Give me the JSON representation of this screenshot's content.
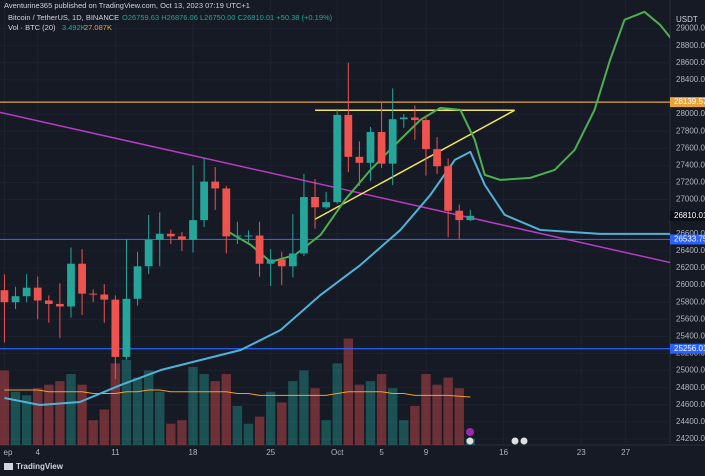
{
  "header": {
    "publisher": "Aventurine365 published on TradingView.com, Oct 13, 2023 07:19 UTC+1",
    "symbol": "Bitcoin / TetherUS, 1D, BINANCE",
    "ohlc": "O26759.63 H26876.06 L26750.00 C26810.01 +50.38 (+0.19%)",
    "volume": "Vol · BTC (20)",
    "vol_last": "3.492K",
    "vol_ma": "27.087K"
  },
  "chart_data": {
    "type": "candlestick",
    "currency": "USDT",
    "xlim": [
      -0.4,
      60
    ],
    "xticks": [
      {
        "value": 0,
        "label": "ep"
      },
      {
        "value": 3,
        "label": "4"
      },
      {
        "value": 10,
        "label": "11"
      },
      {
        "value": 17,
        "label": "18"
      },
      {
        "value": 24,
        "label": "25"
      },
      {
        "value": 30,
        "label": "Oct"
      },
      {
        "value": 34,
        "label": "5"
      },
      {
        "value": 38,
        "label": "9"
      },
      {
        "value": 45,
        "label": "16"
      },
      {
        "value": 52,
        "label": "23"
      },
      {
        "value": 56,
        "label": "27"
      }
    ],
    "ylim": [
      24130,
      29334
    ],
    "yticks": [
      {
        "value": 24200,
        "label": "24200.00"
      },
      {
        "value": 24400,
        "label": "24400.00"
      },
      {
        "value": 24600,
        "label": "24600.00"
      },
      {
        "value": 24800,
        "label": "24800.00"
      },
      {
        "value": 25000,
        "label": "25000.00"
      },
      {
        "value": 25200,
        "label": "25200.00"
      },
      {
        "value": 25400,
        "label": "25400.00"
      },
      {
        "value": 25600,
        "label": "25600.00"
      },
      {
        "value": 25800,
        "label": "25800.00"
      },
      {
        "value": 26000,
        "label": "26000.00"
      },
      {
        "value": 26200,
        "label": "26200.00"
      },
      {
        "value": 26400,
        "label": "26400.00"
      },
      {
        "value": 26600,
        "label": "26600.00"
      },
      {
        "value": 27000,
        "label": "27000.00"
      },
      {
        "value": 27200,
        "label": "27200.00"
      },
      {
        "value": 27400,
        "label": "27400.00"
      },
      {
        "value": 27600,
        "label": "27600.00"
      },
      {
        "value": 27800,
        "label": "27800.00"
      },
      {
        "value": 28000,
        "label": "28000.00"
      },
      {
        "value": 28400,
        "label": "28400.00"
      },
      {
        "value": 28600,
        "label": "28600.00"
      },
      {
        "value": 28800,
        "label": "28800.00"
      },
      {
        "value": 29000,
        "label": "29000.00"
      }
    ],
    "up_color": "#26a69a",
    "down_color": "#ef5350",
    "open": [
      25940,
      25800,
      25870,
      25970,
      25820,
      25780,
      25750,
      26250,
      25900,
      25890,
      25830,
      25160,
      25840,
      26220,
      26530,
      26600,
      26570,
      26530,
      26760,
      27210,
      27130,
      26570,
      26580,
      26580,
      26250,
      26300,
      26220,
      26370,
      27030,
      26910,
      26970,
      27990,
      27500,
      27430,
      27790,
      27420,
      27940,
      27960,
      27930,
      27590,
      27390,
      26870,
      26760
    ],
    "high": [
      26125,
      25980,
      26130,
      26100,
      25880,
      26020,
      26440,
      26420,
      25950,
      26010,
      25880,
      26540,
      26390,
      26820,
      26850,
      26650,
      26620,
      27400,
      27490,
      27380,
      27160,
      26740,
      26640,
      26740,
      26420,
      26390,
      26830,
      27300,
      27240,
      27090,
      28060,
      28600,
      27680,
      27850,
      28130,
      28300,
      28000,
      28100,
      27980,
      27730,
      27480,
      26940,
      26880
    ],
    "low": [
      25330,
      25720,
      25800,
      25600,
      25560,
      25380,
      25620,
      25650,
      25800,
      25560,
      24900,
      25130,
      25760,
      26130,
      26220,
      26480,
      26400,
      26380,
      26680,
      26880,
      26370,
      26480,
      26500,
      26100,
      25990,
      26000,
      26090,
      26340,
      26660,
      26890,
      26950,
      27320,
      27160,
      27220,
      27370,
      27170,
      27840,
      27700,
      27280,
      27300,
      26560,
      26540,
      26750
    ],
    "close": [
      25800,
      25870,
      25970,
      25820,
      25780,
      25750,
      26250,
      25900,
      25890,
      25830,
      25160,
      25840,
      26220,
      26530,
      26600,
      26570,
      26530,
      26760,
      27210,
      27130,
      26570,
      26580,
      26580,
      26250,
      26300,
      26220,
      26370,
      27030,
      26910,
      26970,
      27990,
      27500,
      27430,
      27790,
      27420,
      27940,
      27960,
      27930,
      27590,
      27390,
      26870,
      26760,
      26810
    ],
    "volume": [
      42,
      30,
      28,
      32,
      34,
      36,
      40,
      34,
      14,
      20,
      46,
      48,
      38,
      42,
      30,
      12,
      14,
      44,
      40,
      36,
      40,
      22,
      12,
      16,
      30,
      24,
      36,
      42,
      32,
      14,
      46,
      60,
      34,
      36,
      40,
      32,
      14,
      22,
      40,
      34,
      38,
      32,
      3.492
    ],
    "volume_ma": [
      31,
      31,
      31,
      31,
      30,
      30,
      30,
      30,
      29,
      29,
      29,
      30,
      30,
      31,
      31,
      30,
      30,
      30,
      30,
      30,
      30,
      29,
      29,
      28,
      28,
      28,
      28,
      28,
      28,
      28,
      29,
      30,
      30,
      30,
      30,
      29,
      29,
      28,
      28,
      28,
      28,
      27.5,
      27.087
    ],
    "vol_ylim": [
      0,
      62
    ],
    "vol_color": "#f0a030",
    "lines": [
      {
        "color": "#4caf50",
        "x": [
          19.9,
          22.2,
          24,
          26.2,
          28.5,
          30.7,
          33,
          35.2,
          37.5,
          39.3,
          41.1,
          42.4,
          43.3,
          44.7,
          47.4,
          49.6,
          51.4,
          53.2,
          54.6,
          55.9,
          57.7,
          59.1,
          60.2
        ],
        "values": [
          26645,
          26470,
          26271,
          26353,
          26587,
          26996,
          27347,
          27640,
          27932,
          28073,
          28049,
          27698,
          27289,
          27230,
          27254,
          27347,
          27581,
          28049,
          28634,
          29102,
          29196,
          29044,
          28868
        ]
      },
      {
        "color": "#4fb3d9",
        "x": [
          0,
          3.2,
          6.8,
          10.5,
          14.1,
          17.7,
          21.3,
          24.9,
          28.5,
          32.1,
          35.7,
          38.4,
          40.6,
          42,
          43.3,
          45.1,
          48.3,
          53.7,
          60
        ],
        "values": [
          24680,
          24598,
          24633,
          24832,
          25007,
          25124,
          25241,
          25475,
          25885,
          26236,
          26645,
          27055,
          27464,
          27558,
          27172,
          26821,
          26645,
          26599,
          26599
        ]
      }
    ],
    "trendlines": [
      {
        "color": "#b83bc4",
        "x": [
          -0.4,
          63
        ],
        "values": [
          28020,
          26177
        ]
      },
      {
        "color": "#f2e45c",
        "x": [
          28,
          46
        ],
        "values": [
          28045,
          28045
        ]
      },
      {
        "color": "#f2e45c",
        "x": [
          28,
          46
        ],
        "values": [
          26770,
          28045
        ]
      }
    ],
    "price_lines": [
      {
        "value": 28139.57,
        "color": "#e8a33d"
      },
      {
        "value": 26533.75,
        "color": "#2962ff"
      },
      {
        "value": 25256.01,
        "color": "#2962ff"
      }
    ],
    "last_price": 26810.01
  },
  "footer": {
    "brand": "TradingView"
  }
}
